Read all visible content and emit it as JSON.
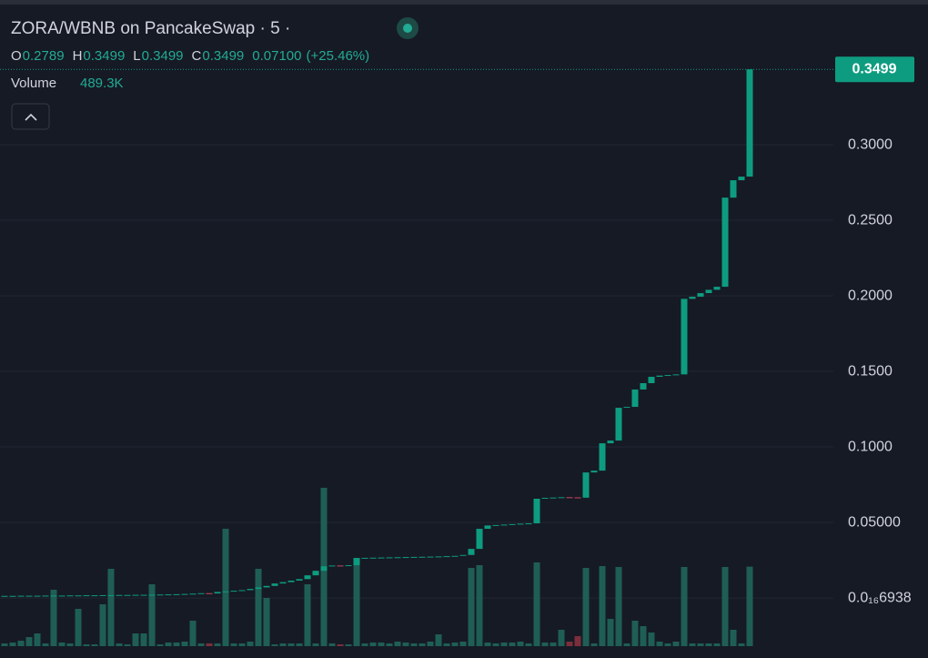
{
  "chart_data": {
    "type": "candlestick",
    "title": "ZORA/WBNB on PancakeSwap · 5 ·",
    "ohlc_keys": [
      "O",
      "H",
      "L",
      "C"
    ],
    "ohlc_values": [
      "0.2789",
      "0.3499",
      "0.3499",
      "0.3499"
    ],
    "change": "0.07100",
    "change_pct": "(+25.46%)",
    "volume_label": "Volume",
    "volume_value": "489.3K",
    "last_price": 0.3499,
    "up_color": "#0e9c80",
    "down_color": "#c9495c",
    "volume_up_color": "#1f5e55",
    "volume_down_color": "#7a2f3a",
    "ylim": [
      -0.0367,
      0.3958
    ],
    "yticks": [
      {
        "value": 1.6938e-17,
        "label": "0.0₁₆6938"
      },
      {
        "value": 0.05,
        "label": "0.05000"
      },
      {
        "value": 0.1,
        "label": "0.1000"
      },
      {
        "value": 0.15,
        "label": "0.1500"
      },
      {
        "value": 0.2,
        "label": "0.2000"
      },
      {
        "value": 0.25,
        "label": "0.2500"
      },
      {
        "value": 0.3,
        "label": "0.3000"
      }
    ],
    "grid": true,
    "open": [
      0.0014,
      0.0014,
      0.0014,
      0.0015,
      0.0015,
      0.0015,
      0.0016,
      0.0016,
      0.0016,
      0.0017,
      0.0017,
      0.0018,
      0.0018,
      0.0019,
      0.0019,
      0.002,
      0.002,
      0.0021,
      0.0021,
      0.0022,
      0.0023,
      0.0024,
      0.0025,
      0.0027,
      0.0029,
      0.0032,
      0.003,
      0.004,
      0.0044,
      0.0048,
      0.0052,
      0.006,
      0.007,
      0.008,
      0.0096,
      0.0105,
      0.0115,
      0.0125,
      0.015,
      0.018,
      0.021,
      0.0215,
      0.0213,
      0.0217,
      0.0265,
      0.0266,
      0.0267,
      0.0268,
      0.0269,
      0.027,
      0.0271,
      0.0272,
      0.0273,
      0.0274,
      0.0275,
      0.0277,
      0.0279,
      0.0285,
      0.0325,
      0.0458,
      0.048,
      0.0483,
      0.0486,
      0.0489,
      0.0492,
      0.0494,
      0.0657,
      0.0663,
      0.0665,
      0.0667,
      0.0666,
      0.0664,
      0.0831,
      0.0843,
      0.1024,
      0.1042,
      0.1259,
      0.1265,
      0.138,
      0.1422,
      0.1464,
      0.1472,
      0.1476,
      0.148,
      0.198,
      0.1994,
      0.2018,
      0.204,
      0.206,
      0.265,
      0.2765,
      0.2789
    ],
    "close": [
      0.0014,
      0.0014,
      0.0015,
      0.0015,
      0.0015,
      0.0016,
      0.0016,
      0.0016,
      0.0017,
      0.0017,
      0.0018,
      0.0018,
      0.0019,
      0.0019,
      0.002,
      0.002,
      0.0021,
      0.0021,
      0.0022,
      0.0023,
      0.0024,
      0.0025,
      0.0027,
      0.0029,
      0.0032,
      0.003,
      0.004,
      0.0044,
      0.0048,
      0.0052,
      0.006,
      0.007,
      0.008,
      0.0096,
      0.0105,
      0.0115,
      0.0125,
      0.015,
      0.018,
      0.021,
      0.0215,
      0.0213,
      0.0217,
      0.0265,
      0.0266,
      0.0267,
      0.0268,
      0.0269,
      0.027,
      0.0271,
      0.0272,
      0.0273,
      0.0274,
      0.0275,
      0.0277,
      0.0279,
      0.0285,
      0.0325,
      0.0458,
      0.048,
      0.0483,
      0.0486,
      0.0489,
      0.0492,
      0.0494,
      0.0657,
      0.0663,
      0.0665,
      0.0667,
      0.0666,
      0.0664,
      0.0831,
      0.0843,
      0.1024,
      0.1042,
      0.1259,
      0.1265,
      0.138,
      0.1422,
      0.1464,
      0.1472,
      0.1476,
      0.148,
      0.198,
      0.1994,
      0.2018,
      0.204,
      0.206,
      0.265,
      0.2765,
      0.2789,
      0.3499
    ],
    "volume": [
      16800,
      22400,
      33600,
      56000,
      78400,
      16800,
      347200,
      22400,
      16800,
      229600,
      11200,
      11200,
      257600,
      476000,
      16800,
      11200,
      78400,
      78400,
      380800,
      11200,
      22400,
      22400,
      28000,
      156800,
      16800,
      16800,
      16800,
      722400,
      16800,
      16800,
      28000,
      476000,
      296800,
      11200,
      16800,
      16800,
      16800,
      380800,
      16800,
      974400,
      16800,
      11200,
      11200,
      543200,
      16800,
      22400,
      22400,
      16800,
      28000,
      22400,
      16800,
      16800,
      28000,
      72800,
      16800,
      22400,
      28000,
      481600,
      498400,
      22400,
      16800,
      22400,
      22400,
      28000,
      16800,
      515200,
      22400,
      22400,
      100800,
      28000,
      61600,
      481600,
      16800,
      492800,
      168000,
      487200,
      16800,
      156800,
      123200,
      84000,
      28000,
      16800,
      28000,
      487200,
      16800,
      16800,
      16800,
      16800,
      487200,
      100800,
      16800,
      489300
    ]
  }
}
